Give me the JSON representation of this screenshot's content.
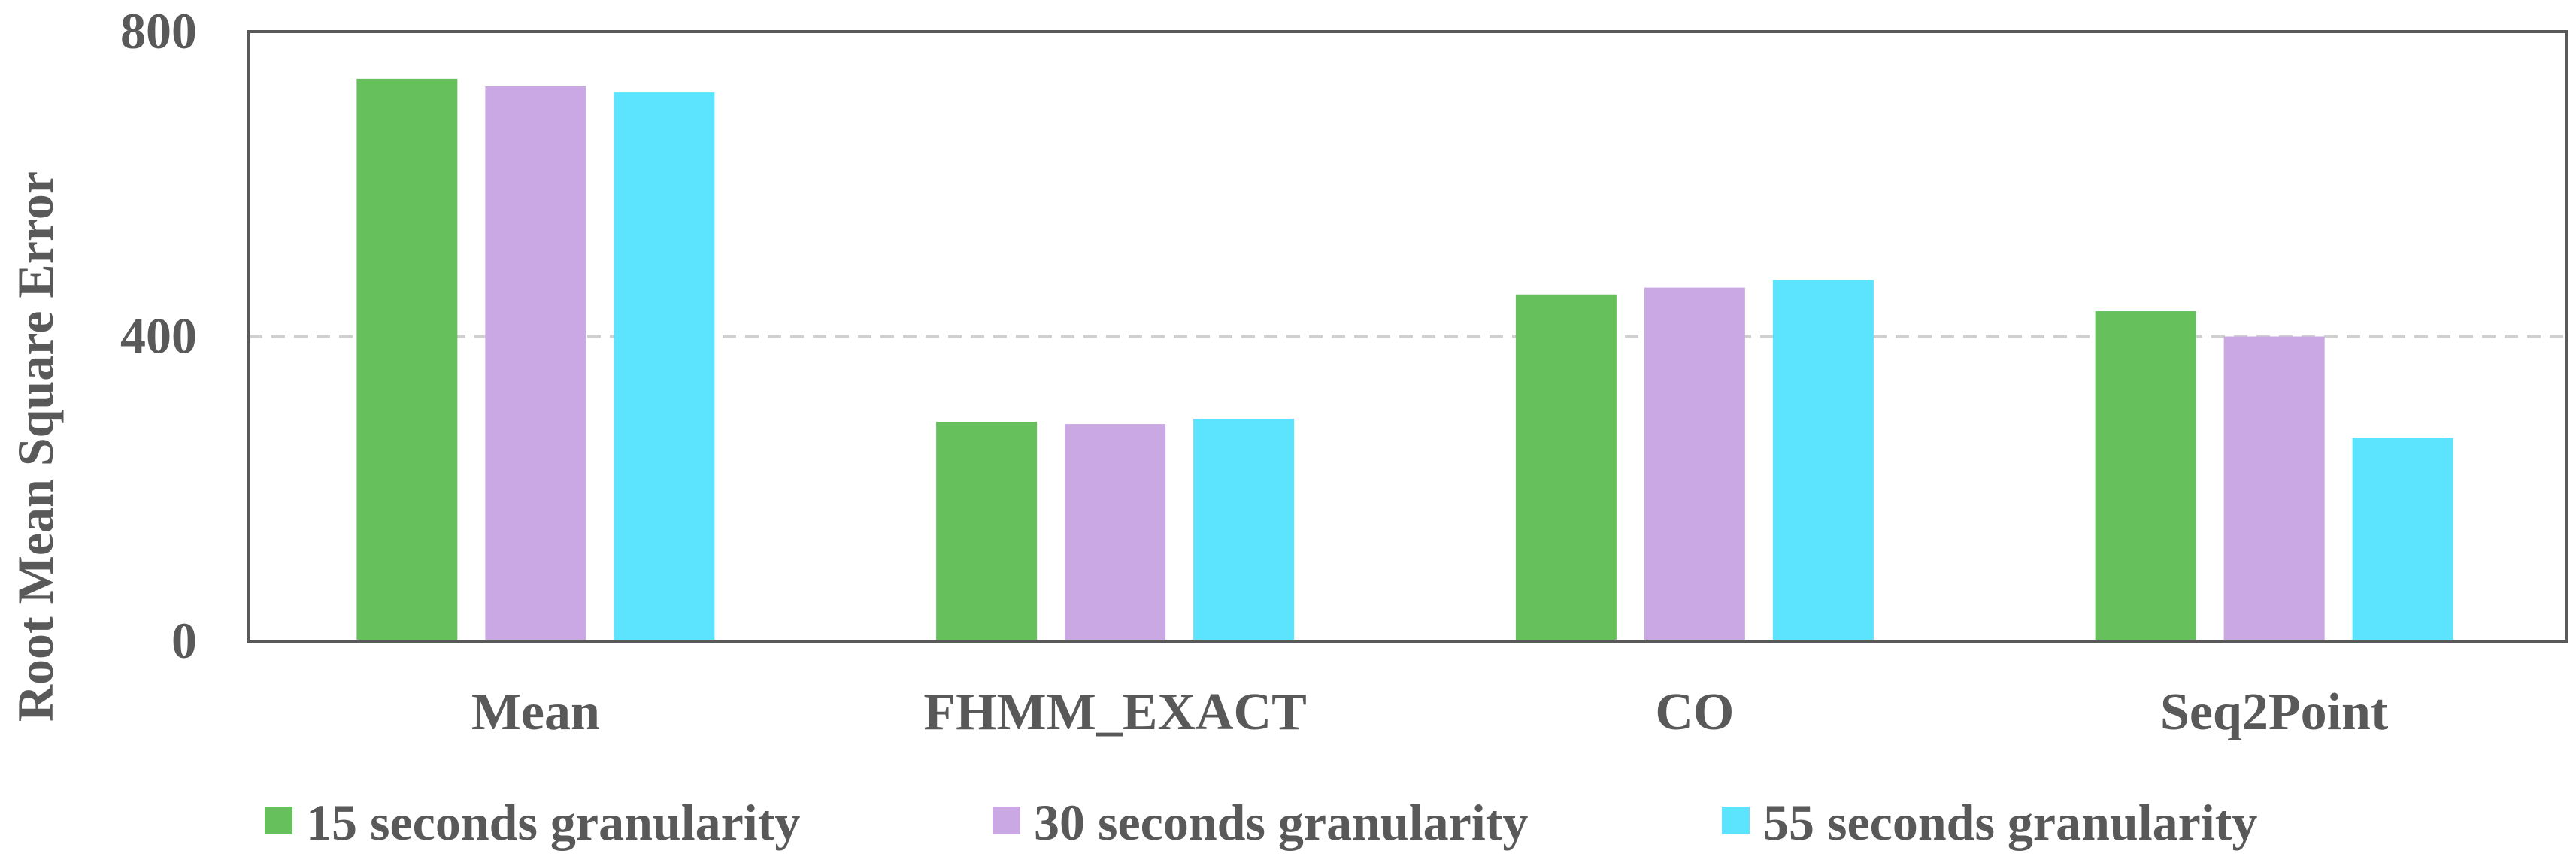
{
  "chart_data": {
    "type": "bar",
    "title": "",
    "xlabel": "",
    "ylabel": "Root Mean Square Error",
    "ylim": [
      0,
      800
    ],
    "yticks": [
      0,
      400,
      800
    ],
    "grid": "dashed horizontal line at 400",
    "legend_position": "bottom",
    "categories": [
      "Mean",
      "FHMM_EXACT",
      "CO",
      "Seq2Point"
    ],
    "series": [
      {
        "name": "15 seconds granularity",
        "color": "#66c15d",
        "values": [
          738,
          288,
          455,
          433
        ]
      },
      {
        "name": "30 seconds granularity",
        "color": "#c9a8e3",
        "values": [
          728,
          285,
          464,
          400
        ]
      },
      {
        "name": "55 seconds granularity",
        "color": "#5ce3fd",
        "values": [
          720,
          292,
          474,
          267
        ]
      }
    ]
  },
  "colors": {
    "text": "#595959",
    "axis": "#595959",
    "grid": "#d0d0d0"
  }
}
